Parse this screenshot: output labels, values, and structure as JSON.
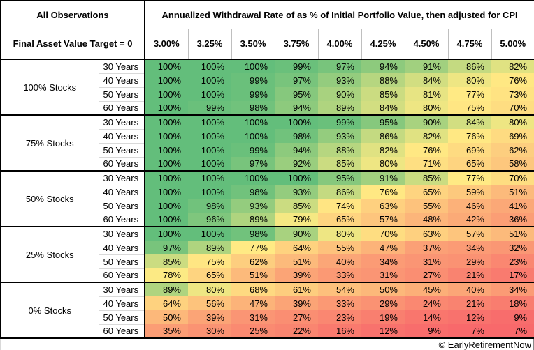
{
  "table": {
    "corner_label": "All Observations",
    "subcorner_label": "Final Asset Value Target = 0",
    "title": "Annualized Withdrawal Rate of as % of Initial Portfolio Value, then adjusted for CPI"
  },
  "footer": {
    "credit": "© EarlyRetirementNow"
  },
  "chart_data": {
    "type": "heatmap",
    "title": "Annualized Withdrawal Rate of as % of Initial Portfolio Value, then adjusted for CPI",
    "corner_label": "All Observations",
    "subcorner_label": "Final Asset Value Target = 0",
    "columns": [
      "3.00%",
      "3.25%",
      "3.50%",
      "3.75%",
      "4.00%",
      "4.25%",
      "4.50%",
      "4.75%",
      "5.00%"
    ],
    "value_suffix": "%",
    "row_groups": [
      {
        "label": "100% Stocks",
        "rows": [
          {
            "label": "30 Years",
            "values": [
              100,
              100,
              100,
              99,
              97,
              94,
              91,
              86,
              82
            ]
          },
          {
            "label": "40 Years",
            "values": [
              100,
              100,
              99,
              97,
              93,
              88,
              84,
              80,
              76
            ]
          },
          {
            "label": "50 Years",
            "values": [
              100,
              100,
              99,
              95,
              90,
              85,
              81,
              77,
              73
            ]
          },
          {
            "label": "60 Years",
            "values": [
              100,
              99,
              98,
              94,
              89,
              84,
              80,
              75,
              70
            ]
          }
        ]
      },
      {
        "label": "75% Stocks",
        "rows": [
          {
            "label": "30 Years",
            "values": [
              100,
              100,
              100,
              100,
              99,
              95,
              90,
              84,
              80
            ]
          },
          {
            "label": "40 Years",
            "values": [
              100,
              100,
              100,
              98,
              93,
              86,
              82,
              76,
              69
            ]
          },
          {
            "label": "50 Years",
            "values": [
              100,
              100,
              99,
              94,
              88,
              82,
              76,
              69,
              62
            ]
          },
          {
            "label": "60 Years",
            "values": [
              100,
              100,
              97,
              92,
              85,
              80,
              71,
              65,
              58
            ]
          }
        ]
      },
      {
        "label": "50% Stocks",
        "rows": [
          {
            "label": "30 Years",
            "values": [
              100,
              100,
              100,
              100,
              95,
              91,
              85,
              77,
              70
            ]
          },
          {
            "label": "40 Years",
            "values": [
              100,
              100,
              98,
              93,
              86,
              76,
              65,
              59,
              51
            ]
          },
          {
            "label": "50 Years",
            "values": [
              100,
              98,
              93,
              85,
              74,
              63,
              55,
              46,
              41
            ]
          },
          {
            "label": "60 Years",
            "values": [
              100,
              96,
              89,
              79,
              65,
              57,
              48,
              42,
              36
            ]
          }
        ]
      },
      {
        "label": "25% Stocks",
        "rows": [
          {
            "label": "30 Years",
            "values": [
              100,
              100,
              98,
              90,
              80,
              70,
              63,
              57,
              51
            ]
          },
          {
            "label": "40 Years",
            "values": [
              97,
              89,
              77,
              64,
              55,
              47,
              37,
              34,
              32
            ]
          },
          {
            "label": "50 Years",
            "values": [
              85,
              75,
              62,
              51,
              40,
              34,
              31,
              29,
              23
            ]
          },
          {
            "label": "60 Years",
            "values": [
              78,
              65,
              51,
              39,
              33,
              31,
              27,
              21,
              17
            ]
          }
        ]
      },
      {
        "label": "0% Stocks",
        "rows": [
          {
            "label": "30 Years",
            "values": [
              89,
              80,
              68,
              61,
              54,
              50,
              45,
              40,
              34
            ]
          },
          {
            "label": "40 Years",
            "values": [
              64,
              56,
              47,
              39,
              33,
              29,
              24,
              21,
              18
            ]
          },
          {
            "label": "50 Years",
            "values": [
              50,
              39,
              31,
              27,
              23,
              19,
              14,
              12,
              9
            ]
          },
          {
            "label": "60 Years",
            "values": [
              35,
              30,
              25,
              22,
              16,
              12,
              9,
              7,
              7
            ]
          }
        ]
      }
    ],
    "color_scale": {
      "min_value": 7,
      "mid_value": 77.5,
      "max_value": 100,
      "min_color": "#F8696B",
      "mid_color": "#FFEB84",
      "max_color": "#63BE7B"
    }
  }
}
